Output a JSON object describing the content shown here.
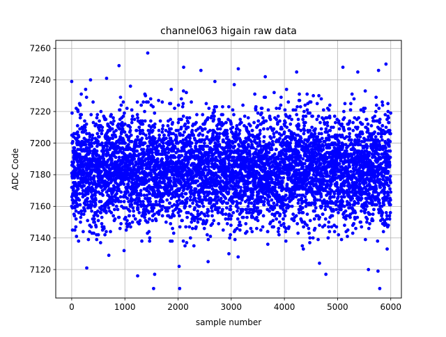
{
  "chart_data": {
    "type": "scatter",
    "title": "channel063 higain raw data",
    "xlabel": "sample number",
    "ylabel": "ADC Code",
    "xlim": [
      -300,
      6200
    ],
    "ylim": [
      7102,
      7265
    ],
    "xticks": [
      0,
      1000,
      2000,
      3000,
      4000,
      5000,
      6000
    ],
    "yticks": [
      7120,
      7140,
      7160,
      7180,
      7200,
      7220,
      7240,
      7260
    ],
    "grid": true,
    "marker_color": "#0000ff",
    "sample_count": 6000,
    "distribution": {
      "center": 7183,
      "typical_min": 7145,
      "typical_max": 7220
    },
    "highlighted_points": [
      {
        "x": 0,
        "y": 7239
      },
      {
        "x": 890,
        "y": 7249
      },
      {
        "x": 1430,
        "y": 7257
      },
      {
        "x": 2430,
        "y": 7246
      },
      {
        "x": 3640,
        "y": 7242
      },
      {
        "x": 4230,
        "y": 7245
      },
      {
        "x": 5100,
        "y": 7248
      },
      {
        "x": 5910,
        "y": 7250
      },
      {
        "x": 5380,
        "y": 7245
      },
      {
        "x": 5770,
        "y": 7246
      },
      {
        "x": 1540,
        "y": 7108
      },
      {
        "x": 2030,
        "y": 7108
      },
      {
        "x": 1240,
        "y": 7116
      },
      {
        "x": 1560,
        "y": 7117
      },
      {
        "x": 4780,
        "y": 7117
      },
      {
        "x": 5580,
        "y": 7120
      },
      {
        "x": 5760,
        "y": 7119
      },
      {
        "x": 2020,
        "y": 7122
      },
      {
        "x": 4660,
        "y": 7124
      },
      {
        "x": 3130,
        "y": 7128
      }
    ]
  }
}
